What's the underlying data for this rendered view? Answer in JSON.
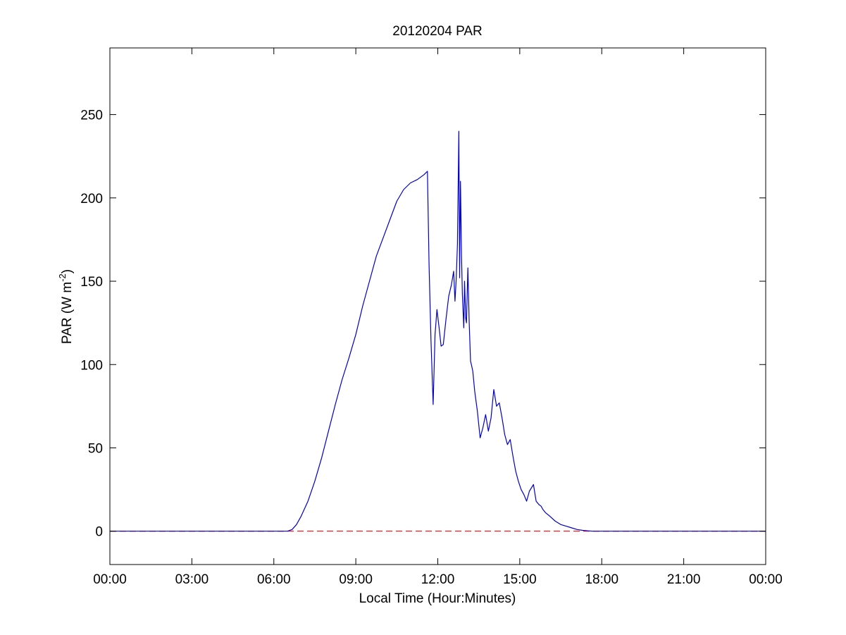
{
  "chart_data": {
    "type": "line",
    "title": "20120204 PAR",
    "xlabel": "Local Time (Hour:Minutes)",
    "ylabel": {
      "main": "PAR (W m",
      "sup": "-2",
      "close": ")"
    },
    "xlim": [
      0,
      24
    ],
    "ylim": [
      -20,
      290
    ],
    "x_ticks": [
      {
        "value": 0,
        "label": "00:00"
      },
      {
        "value": 3,
        "label": "03:00"
      },
      {
        "value": 6,
        "label": "06:00"
      },
      {
        "value": 9,
        "label": "09:00"
      },
      {
        "value": 12,
        "label": "12:00"
      },
      {
        "value": 15,
        "label": "15:00"
      },
      {
        "value": 18,
        "label": "18:00"
      },
      {
        "value": 21,
        "label": "21:00"
      },
      {
        "value": 24,
        "label": "00:00"
      }
    ],
    "y_ticks": [
      {
        "value": 0,
        "label": "0"
      },
      {
        "value": 50,
        "label": "50"
      },
      {
        "value": 100,
        "label": "100"
      },
      {
        "value": 150,
        "label": "150"
      },
      {
        "value": 200,
        "label": "200"
      },
      {
        "value": 250,
        "label": "250"
      }
    ],
    "grid": false,
    "series": [
      {
        "color": "#0000c8",
        "style": "solid",
        "x": [
          0,
          6.5,
          6.67,
          6.83,
          7.0,
          7.25,
          7.5,
          7.75,
          8.0,
          8.25,
          8.5,
          8.75,
          9.0,
          9.25,
          9.5,
          9.75,
          10.0,
          10.25,
          10.5,
          10.75,
          11.0,
          11.25,
          11.5,
          11.62,
          11.68,
          11.75,
          11.83,
          11.9,
          11.97,
          12.05,
          12.12,
          12.2,
          12.3,
          12.4,
          12.5,
          12.58,
          12.63,
          12.67,
          12.72,
          12.77,
          12.8,
          12.83,
          12.87,
          12.9,
          12.95,
          12.98,
          13.02,
          13.05,
          13.1,
          13.15,
          13.2,
          13.23,
          13.28,
          13.35,
          13.45,
          13.55,
          13.65,
          13.75,
          13.85,
          13.95,
          14.05,
          14.15,
          14.25,
          14.35,
          14.45,
          14.55,
          14.65,
          14.75,
          14.85,
          14.95,
          15.05,
          15.15,
          15.25,
          15.35,
          15.5,
          15.6,
          15.7,
          15.78,
          15.85,
          15.95,
          16.1,
          16.3,
          16.5,
          16.7,
          16.9,
          17.1,
          17.3,
          17.5,
          17.65,
          17.8,
          18.0,
          24.0
        ],
        "y": [
          0,
          0,
          1,
          4,
          9,
          18,
          30,
          44,
          60,
          76,
          91,
          104,
          118,
          135,
          150,
          165,
          176,
          187,
          198,
          205,
          209,
          211,
          214,
          216,
          160,
          115,
          76,
          118,
          133,
          122,
          111,
          112,
          127,
          141,
          148,
          156,
          138,
          150,
          172,
          240,
          152,
          210,
          165,
          142,
          122,
          150,
          128,
          125,
          158,
          125,
          102,
          100,
          96,
          84,
          72,
          56,
          62,
          70,
          60,
          68,
          85,
          75,
          77,
          68,
          58,
          52,
          55,
          45,
          36,
          30,
          25,
          22,
          18,
          24,
          28,
          18,
          16,
          15,
          13,
          11,
          9,
          6,
          4,
          3,
          2,
          1,
          0.5,
          0.2,
          0,
          0,
          0,
          0
        ]
      },
      {
        "color": "#ff0000",
        "style": "dashed",
        "x": [
          0,
          24
        ],
        "y": [
          0,
          0
        ]
      }
    ]
  }
}
